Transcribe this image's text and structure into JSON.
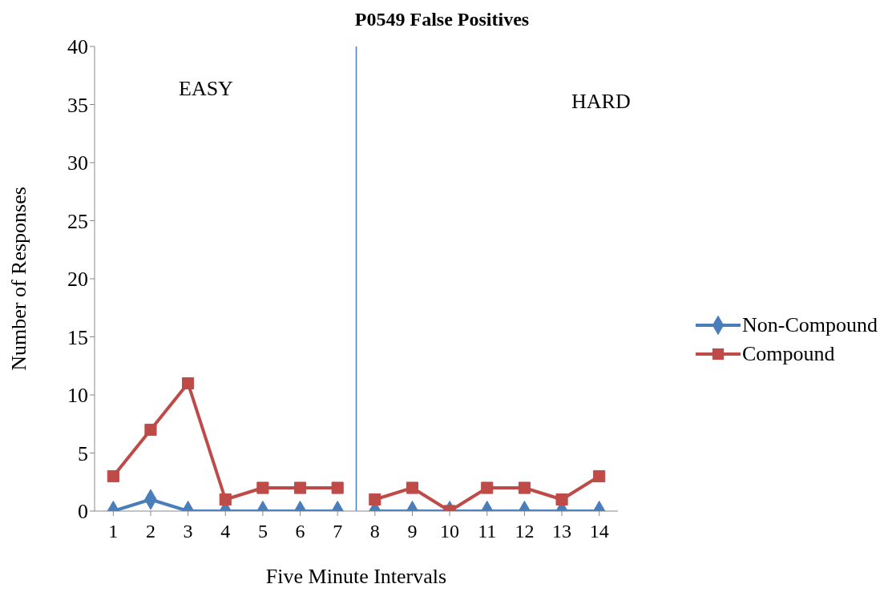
{
  "chart_data": {
    "type": "line",
    "title": "P0549 False Positives",
    "xlabel": "Five Minute Intervals",
    "ylabel": "Number of Responses",
    "xlim": [
      0.5,
      14.5
    ],
    "xticks": [
      1,
      2,
      3,
      4,
      5,
      6,
      7,
      8,
      9,
      10,
      11,
      12,
      13,
      14
    ],
    "ylim": [
      0,
      40
    ],
    "yticks": [
      0,
      5,
      10,
      15,
      20,
      25,
      30,
      35,
      40
    ],
    "legend": "right",
    "series": [
      {
        "name": "Non-Compound",
        "color": "#4a7ebb",
        "marker": "diamond",
        "x": [
          1,
          2,
          3,
          4,
          5,
          6,
          7
        ],
        "values": [
          0,
          1,
          0,
          0,
          0,
          0,
          0
        ]
      },
      {
        "name": "Compound",
        "color": "#be4b48",
        "marker": "square",
        "x": [
          1,
          2,
          3,
          4,
          5,
          6,
          7
        ],
        "values": [
          3,
          7,
          11,
          1,
          2,
          2,
          2
        ]
      },
      {
        "color": "#4a7ebb",
        "marker": "diamond",
        "x": [
          8,
          9,
          10,
          11,
          12,
          13,
          14
        ],
        "values": [
          0,
          0,
          0,
          0,
          0,
          0,
          0
        ]
      },
      {
        "color": "#be4b48",
        "marker": "square",
        "x": [
          8,
          9,
          10,
          11,
          12,
          13,
          14
        ],
        "values": [
          1,
          2,
          0,
          2,
          2,
          1,
          3
        ]
      }
    ],
    "ref_lines": [
      {
        "axis": "x",
        "value": 7.5,
        "color": "#4a7ebb"
      }
    ],
    "annotations": [
      "EASY",
      "HARD"
    ]
  }
}
